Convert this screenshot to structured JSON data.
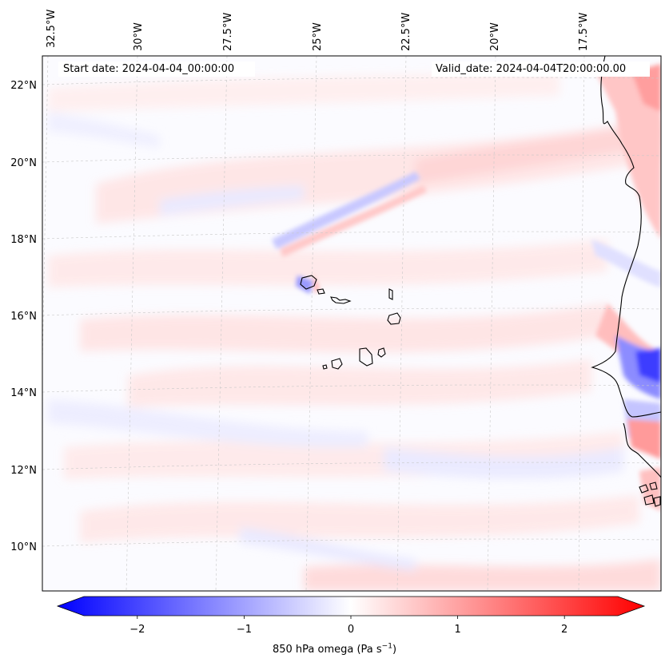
{
  "map": {
    "start_date_label": "Start date: 2024-04-04_00:00:00",
    "valid_date_label": "Valid_date: 2024-04-04T20:00:00.00",
    "lon_labels": [
      "32.5°W",
      "30°W",
      "27.5°W",
      "25°W",
      "22.5°W",
      "20°W",
      "17.5°W"
    ],
    "lat_labels": [
      "22°N",
      "20°N",
      "18°N",
      "16°N",
      "14°N",
      "12°N",
      "10°N"
    ],
    "field": "850 hPa vertical velocity (omega)"
  },
  "colorbar": {
    "label_main": "850 hPa omega (Pa s",
    "label_exp": "−1",
    "label_close": ")",
    "tick_labels": [
      "−2",
      "−1",
      "0",
      "1",
      "2"
    ],
    "tick_values": [
      -2,
      -1,
      0,
      1,
      2
    ],
    "vmin": -2.5,
    "vmax": 2.5,
    "color_low": "#0000ff",
    "color_mid": "#ffffff",
    "color_high": "#ff0000"
  }
}
